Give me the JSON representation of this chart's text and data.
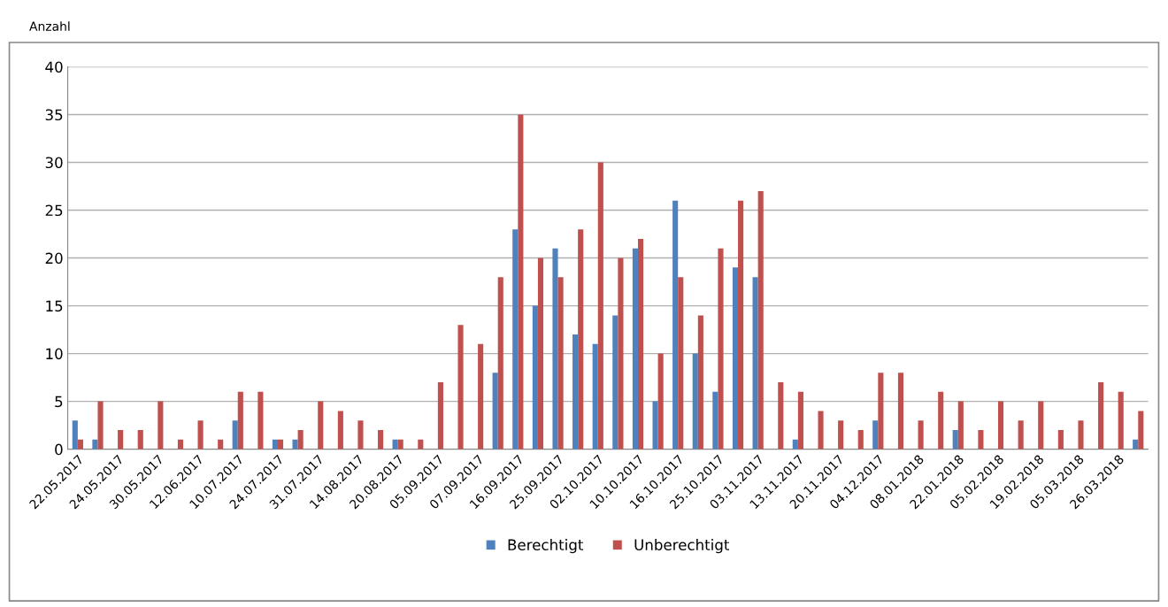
{
  "chart_data": {
    "type": "bar",
    "ylabel": "Anzahl",
    "categories": [
      "22.05.2017",
      null,
      "24.05.2017",
      null,
      "30.05.2017",
      null,
      "12.06.2017",
      null,
      "10.07.2017",
      null,
      "24.07.2017",
      null,
      "31.07.2017",
      null,
      "14.08.2017",
      null,
      "20.08.2017",
      null,
      "05.09.2017",
      null,
      "07.09.2017",
      null,
      "16.09.2017",
      null,
      "25.09.2017",
      null,
      "02.10.2017",
      null,
      "10.10.2017",
      null,
      "16.10.2017",
      null,
      "25.10.2017",
      null,
      "03.11.2017",
      null,
      "13.11.2017",
      null,
      "20.11.2017",
      null,
      "04.12.2017",
      null,
      "08.01.2018",
      null,
      "22.01.2018",
      null,
      "05.02.2018",
      null,
      "19.02.2018",
      null,
      "05.03.2018",
      null,
      "26.03.2018",
      null
    ],
    "series": [
      {
        "name": "Berechtigt",
        "color": "#4f81bd",
        "values": [
          3,
          1,
          0,
          0,
          0,
          0,
          0,
          0,
          3,
          0,
          1,
          1,
          0,
          0,
          0,
          0,
          1,
          0,
          0,
          0,
          0,
          8,
          23,
          15,
          21,
          12,
          11,
          14,
          21,
          5,
          26,
          10,
          6,
          19,
          18,
          0,
          1,
          0,
          0,
          0,
          3,
          0,
          0,
          0,
          2,
          0,
          0,
          0,
          0,
          0,
          0,
          0,
          0,
          1
        ]
      },
      {
        "name": "Unberechtigt",
        "color": "#c0504d",
        "values": [
          1,
          5,
          2,
          2,
          5,
          1,
          3,
          1,
          6,
          6,
          1,
          2,
          5,
          4,
          3,
          2,
          1,
          1,
          7,
          13,
          11,
          18,
          35,
          20,
          18,
          23,
          30,
          20,
          22,
          10,
          18,
          14,
          21,
          26,
          27,
          7,
          6,
          4,
          3,
          2,
          8,
          8,
          3,
          6,
          5,
          2,
          5,
          3,
          5,
          2,
          3,
          7,
          6,
          4
        ]
      }
    ],
    "ylim": [
      0,
      40
    ],
    "yticks": [
      0,
      5,
      10,
      15,
      20,
      25,
      30,
      35,
      40
    ],
    "grid": "y",
    "legend": "bottom"
  }
}
